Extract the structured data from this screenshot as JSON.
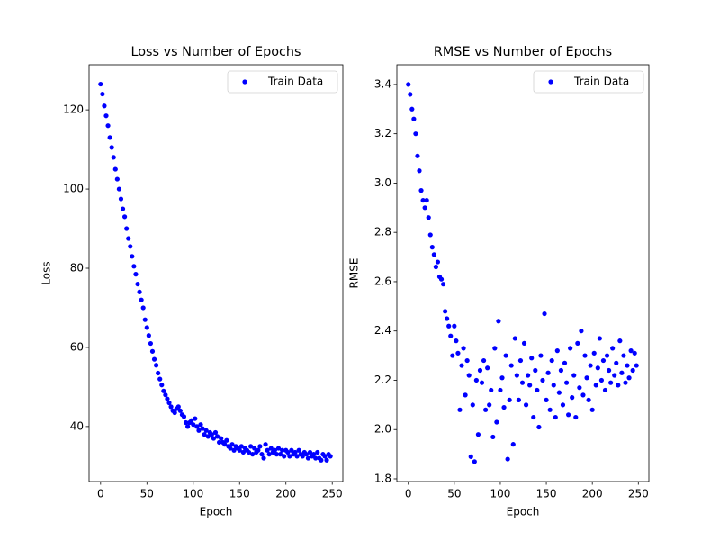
{
  "chart_data": [
    {
      "type": "scatter",
      "title": "Loss vs Number of Epochs",
      "xlabel": "Epoch",
      "ylabel": "Loss",
      "x": [
        0,
        2,
        4,
        6,
        8,
        10,
        12,
        14,
        16,
        18,
        20,
        22,
        24,
        26,
        28,
        30,
        32,
        34,
        36,
        38,
        40,
        42,
        44,
        46,
        48,
        50,
        52,
        54,
        56,
        58,
        60,
        62,
        64,
        66,
        68,
        70,
        72,
        74,
        76,
        78,
        80,
        82,
        84,
        86,
        88,
        90,
        92,
        94,
        96,
        98,
        100,
        102,
        104,
        106,
        108,
        110,
        112,
        114,
        116,
        118,
        120,
        122,
        124,
        126,
        128,
        130,
        132,
        134,
        136,
        138,
        140,
        142,
        144,
        146,
        148,
        150,
        152,
        154,
        156,
        158,
        160,
        162,
        164,
        166,
        168,
        170,
        172,
        174,
        176,
        178,
        180,
        182,
        184,
        186,
        188,
        190,
        192,
        194,
        196,
        198,
        200,
        202,
        204,
        206,
        208,
        210,
        212,
        214,
        216,
        218,
        220,
        222,
        224,
        226,
        228,
        230,
        232,
        234,
        236,
        238,
        240,
        242,
        244,
        246,
        248
      ],
      "series": [
        {
          "name": "Train Data",
          "color": "#0000ff",
          "values": [
            126.5,
            124,
            121,
            118.5,
            116,
            113,
            110.5,
            108,
            105,
            102.5,
            100,
            97.5,
            95,
            93,
            90,
            87.5,
            85.5,
            83,
            80.5,
            78.5,
            76,
            74,
            72,
            70,
            67,
            65,
            63,
            61,
            59,
            57,
            55.5,
            53.5,
            52,
            50.5,
            49,
            48,
            47,
            46,
            45,
            44,
            43.5,
            44.5,
            45,
            44,
            43,
            42.5,
            41,
            40,
            41,
            41.5,
            40.5,
            42,
            40,
            39,
            40.5,
            39.5,
            38,
            39,
            37.5,
            38.5,
            38,
            37,
            38.5,
            37.5,
            36,
            37,
            36,
            35.5,
            36.5,
            35,
            34.5,
            35.5,
            34,
            35,
            34.5,
            34,
            35,
            33.5,
            34.5,
            34,
            33.5,
            35,
            33,
            34.5,
            33.5,
            34,
            35,
            33,
            32,
            35.5,
            34,
            33,
            34.5,
            33.5,
            34,
            33,
            34.5,
            33,
            34,
            32.5,
            34,
            33.5,
            32.5,
            34,
            33,
            33.5,
            32.5,
            34,
            33,
            32.5,
            33.5,
            33,
            32,
            33.5,
            32.5,
            33,
            32,
            33.5,
            32,
            31.5,
            33,
            32.5,
            31.5,
            33,
            32.5
          ]
        }
      ],
      "xlim": [
        -12.45,
        261.45
      ],
      "ylim": [
        26.1,
        131.4
      ],
      "xticks": [
        0,
        50,
        100,
        150,
        200,
        250
      ],
      "yticks": [
        40,
        60,
        80,
        100,
        120
      ],
      "legend": "upper right"
    },
    {
      "type": "scatter",
      "title": "RMSE vs Number of Epochs",
      "xlabel": "Epoch",
      "ylabel": "RMSE",
      "x": [
        0,
        2,
        4,
        6,
        8,
        10,
        12,
        14,
        16,
        18,
        20,
        22,
        24,
        26,
        28,
        30,
        32,
        34,
        36,
        38,
        40,
        42,
        44,
        46,
        48,
        50,
        52,
        54,
        56,
        58,
        60,
        62,
        64,
        66,
        68,
        70,
        72,
        74,
        76,
        78,
        80,
        82,
        84,
        86,
        88,
        90,
        92,
        94,
        96,
        98,
        100,
        102,
        104,
        106,
        108,
        110,
        112,
        114,
        116,
        118,
        120,
        122,
        124,
        126,
        128,
        130,
        132,
        134,
        136,
        138,
        140,
        142,
        144,
        146,
        148,
        150,
        152,
        154,
        156,
        158,
        160,
        162,
        164,
        166,
        168,
        170,
        172,
        174,
        176,
        178,
        180,
        182,
        184,
        186,
        188,
        190,
        192,
        194,
        196,
        198,
        200,
        202,
        204,
        206,
        208,
        210,
        212,
        214,
        216,
        218,
        220,
        222,
        224,
        226,
        228,
        230,
        232,
        234,
        236,
        238,
        240,
        242,
        244,
        246,
        248
      ],
      "series": [
        {
          "name": "Train Data",
          "color": "#0000ff",
          "values": [
            3.4,
            3.36,
            3.3,
            3.26,
            3.2,
            3.11,
            3.05,
            2.97,
            2.93,
            2.9,
            2.93,
            2.86,
            2.79,
            2.74,
            2.71,
            2.66,
            2.68,
            2.62,
            2.61,
            2.59,
            2.48,
            2.45,
            2.42,
            2.38,
            2.3,
            2.42,
            2.36,
            2.31,
            2.08,
            2.26,
            2.33,
            2.14,
            2.28,
            2.22,
            1.89,
            2.1,
            1.87,
            2.2,
            1.98,
            2.24,
            2.19,
            2.28,
            2.08,
            2.25,
            2.1,
            2.16,
            1.97,
            2.33,
            2.03,
            2.44,
            2.16,
            2.21,
            2.09,
            2.3,
            1.88,
            2.12,
            2.26,
            1.94,
            2.37,
            2.22,
            2.12,
            2.28,
            2.19,
            2.35,
            2.1,
            2.22,
            2.18,
            2.29,
            2.05,
            2.24,
            2.16,
            2.01,
            2.3,
            2.2,
            2.47,
            2.12,
            2.23,
            2.08,
            2.28,
            2.18,
            2.05,
            2.32,
            2.15,
            2.24,
            2.1,
            2.27,
            2.19,
            2.06,
            2.33,
            2.13,
            2.22,
            2.05,
            2.35,
            2.17,
            2.4,
            2.14,
            2.3,
            2.21,
            2.12,
            2.26,
            2.08,
            2.31,
            2.18,
            2.25,
            2.37,
            2.2,
            2.28,
            2.16,
            2.3,
            2.24,
            2.19,
            2.33,
            2.22,
            2.27,
            2.18,
            2.36,
            2.23,
            2.3,
            2.19,
            2.26,
            2.21,
            2.32,
            2.24,
            2.31,
            2.26
          ]
        }
      ],
      "xlim": [
        -12.45,
        261.45
      ],
      "ylim": [
        1.789,
        3.48
      ],
      "xticks": [
        0,
        50,
        100,
        150,
        200,
        250
      ],
      "yticks": [
        1.8,
        {
          "value": 2,
          "label": "2.0"
        },
        2.2,
        2.4,
        2.6,
        2.8,
        {
          "value": 3,
          "label": "3.0"
        },
        3.2,
        3.4
      ],
      "legend": "upper right"
    }
  ]
}
